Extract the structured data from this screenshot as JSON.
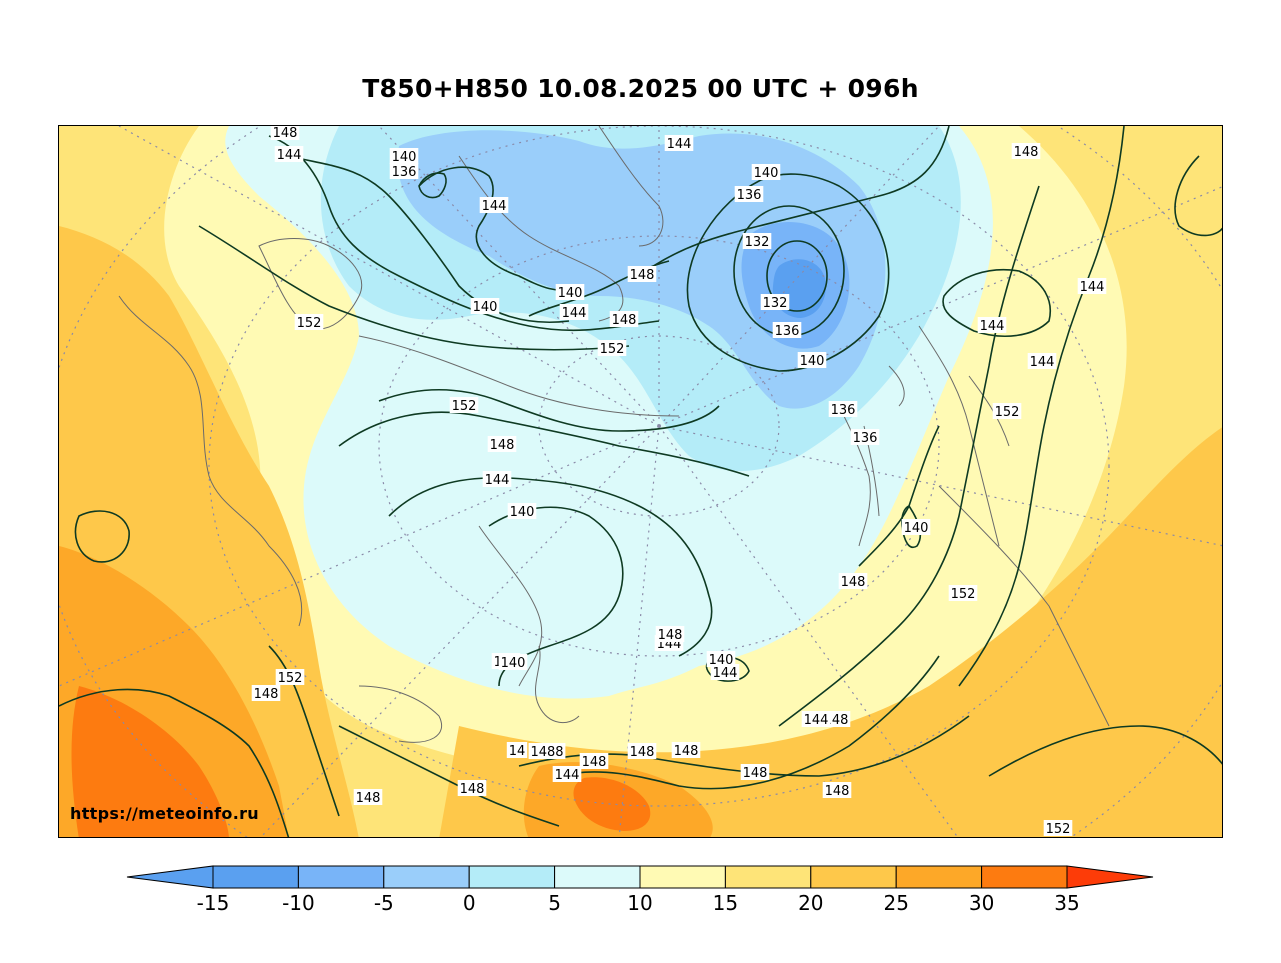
{
  "title": "T850+H850 10.08.2025 00 UTC + 096h",
  "site_credit": "https://meteoinfo.ru",
  "colors": {
    "bins": [
      "#5aa0f0",
      "#78b4f8",
      "#9acefa",
      "#b4ecf8",
      "#dcfafa",
      "#fffab4",
      "#fee478",
      "#fec84a",
      "#fda828",
      "#fd7b10",
      "#fd3c08"
    ],
    "contour_line": "#0e3a22",
    "coastline": "#6a6a6a",
    "graticule": "#8a8aa8"
  },
  "colorbar": {
    "ticks": [
      "-15",
      "-10",
      "-5",
      "0",
      "5",
      "10",
      "15",
      "20",
      "25",
      "30",
      "35"
    ],
    "extend": "both"
  },
  "contour_labels": [
    "148",
    "144",
    "140",
    "136",
    "144",
    "144",
    "148",
    "140",
    "136",
    "132",
    "132",
    "136",
    "140",
    "148",
    "144",
    "148",
    "152",
    "152",
    "148",
    "144",
    "140",
    "152",
    "148",
    "144",
    "140",
    "140",
    "140",
    "136",
    "136",
    "140",
    "148",
    "152",
    "144",
    "144",
    "144",
    "140",
    "152",
    "148",
    "152",
    "148",
    "148",
    "148",
    "1488",
    "148",
    "144",
    "148",
    "148",
    "148",
    "144",
    "148",
    "152",
    "144",
    "140",
    "14"
  ]
}
